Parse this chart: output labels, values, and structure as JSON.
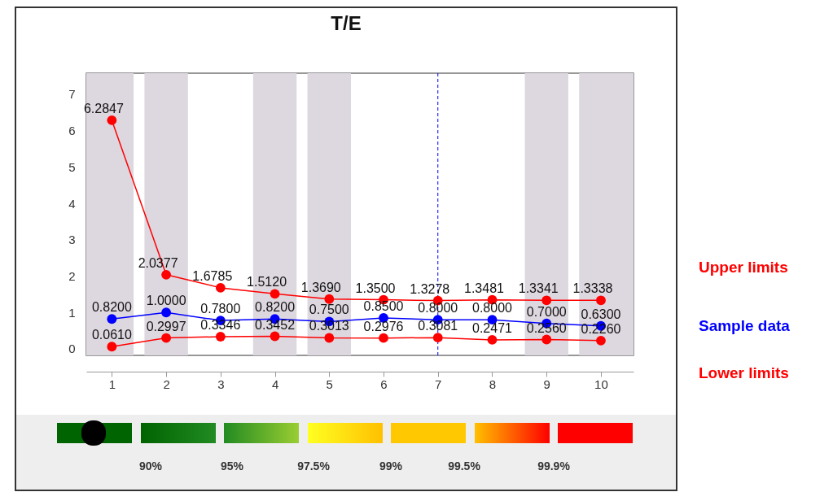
{
  "chart_data": {
    "type": "line",
    "title": "T/E",
    "x": [
      1,
      2,
      3,
      4,
      5,
      6,
      7,
      8,
      9,
      10
    ],
    "series": [
      {
        "name": "Upper limits",
        "color": "#ff0000",
        "values": [
          6.2847,
          2.0377,
          1.6785,
          1.512,
          1.369,
          1.35,
          1.3278,
          1.3481,
          1.3341,
          1.3338
        ],
        "value_labels": [
          "6.2847",
          "2.0377",
          "1.6785",
          "1.5120",
          "1.3690",
          "1.3500",
          "1.3278",
          "1.3481",
          "1.3341",
          "1.3338"
        ]
      },
      {
        "name": "Sample data",
        "color": "#0000ff",
        "values": [
          0.82,
          1.0,
          0.78,
          0.82,
          0.75,
          0.85,
          0.8,
          0.8,
          0.7,
          0.63
        ],
        "value_labels": [
          "0.8200",
          "1.0000",
          "0.7800",
          "0.8200",
          "0.7500",
          "0.8500",
          "0.8000",
          "0.8000",
          "0.7000",
          "0.6300"
        ]
      },
      {
        "name": "Lower limits",
        "color": "#ff0000",
        "values": [
          0.061,
          0.2997,
          0.3346,
          0.3452,
          0.3013,
          0.2976,
          0.3081,
          0.2471,
          0.256,
          0.226
        ],
        "value_labels": [
          "0.0610",
          "0.2997",
          "0.3346",
          "0.3452",
          "0.3013",
          "0.2976",
          "0.3081",
          "0.2471",
          "0.2560",
          "0.2260"
        ]
      }
    ],
    "xlim": [
      0.53,
      10.6
    ],
    "xticks": [
      1,
      2,
      3,
      4,
      5,
      6,
      7,
      8,
      9,
      10
    ],
    "ylim": [
      -0.18,
      7.58
    ],
    "yticks": [
      0,
      1,
      2,
      3,
      4,
      5,
      6,
      7
    ],
    "bands": [
      {
        "axis": "x",
        "from": 0.53,
        "to": 1.4,
        "color": "#ddd7df"
      },
      {
        "axis": "x",
        "from": 1.6,
        "to": 2.4,
        "color": "#ddd7df"
      },
      {
        "axis": "x",
        "from": 3.6,
        "to": 4.4,
        "color": "#ddd7df"
      },
      {
        "axis": "x",
        "from": 4.6,
        "to": 5.4,
        "color": "#ddd7df"
      },
      {
        "axis": "x",
        "from": 8.6,
        "to": 9.4,
        "color": "#ddd7df"
      },
      {
        "axis": "x",
        "from": 9.6,
        "to": 10.6,
        "color": "#ddd7df"
      }
    ],
    "ref_lines": [
      {
        "axis": "x",
        "value": 7,
        "color": "#0000ff",
        "line_style": "dashed"
      }
    ],
    "marker": "circle",
    "line_style": "solid",
    "grid": false,
    "annotations": [
      "90%",
      "95%",
      "97.5%",
      "99%",
      "99.5%",
      "99.9%"
    ]
  }
}
